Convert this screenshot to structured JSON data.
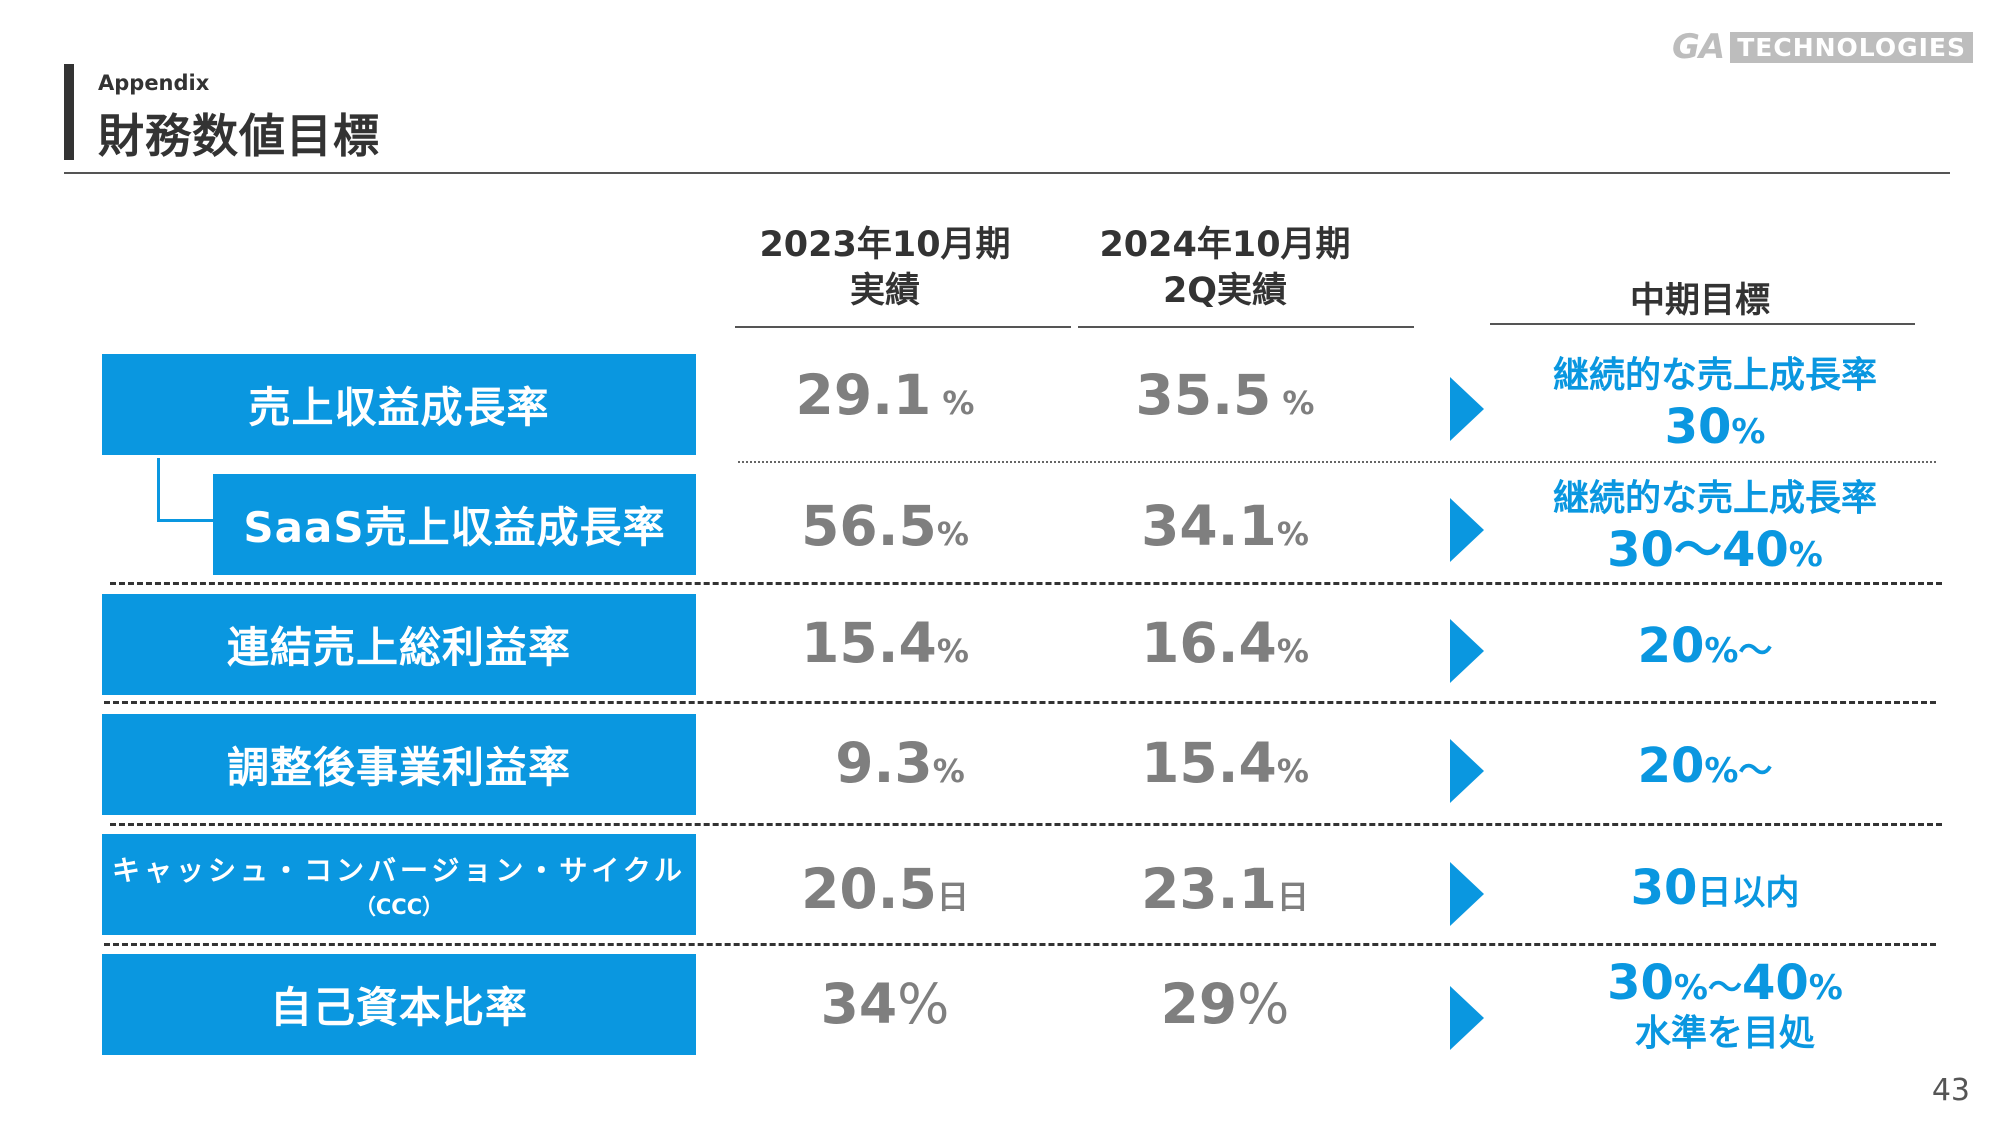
{
  "header": {
    "subtitle": "Appendix",
    "title": "財務数値目標",
    "logo_ga": "GA",
    "logo_tech": "TECHNOLOGIES"
  },
  "columns": {
    "col1_line1": "2023年10月期",
    "col1_line2": "実績",
    "col2_line1": "2024年10月期",
    "col2_line2": "2Q実績",
    "col3": "中期目標"
  },
  "rows": [
    {
      "label": "売上収益成長率",
      "v1": "29.1",
      "v1_unit": " %",
      "v2": "35.5",
      "v2_unit": " %",
      "target_line1": "継続的な売上成長率",
      "target_num": "30",
      "target_unit": "%"
    },
    {
      "label": "SaaS売上収益成長率",
      "v1": "56.5",
      "v1_unit": "%",
      "v2": "34.1",
      "v2_unit": "%",
      "target_line1": "継続的な売上成長率",
      "target_num": "30～40",
      "target_unit": "%"
    },
    {
      "label": "連結売上総利益率",
      "v1": "15.4",
      "v1_unit": "%",
      "v2": "16.4",
      "v2_unit": "%",
      "target_num": "20",
      "target_unit": "%～"
    },
    {
      "label": "調整後事業利益率",
      "v1": "9.3",
      "v1_unit": "%",
      "v2": "15.4",
      "v2_unit": "%",
      "target_num": "20",
      "target_unit": "%～"
    },
    {
      "label": "キャッシュ・コンバージョン・サイクル",
      "label_sub": "（CCC）",
      "v1": "20.5",
      "v1_unit": "日",
      "v2": "23.1",
      "v2_unit": "日",
      "target_num": "30",
      "target_unit": "日以内"
    },
    {
      "label": "自己資本比率",
      "v1": "34",
      "v1_unit": "%",
      "v2": "29",
      "v2_unit": "%",
      "target_num_a": "30",
      "target_unit_a": "%～",
      "target_num_b": "40",
      "target_unit_b": "%",
      "target_line2": "水準を目処"
    }
  ],
  "page_number": "43",
  "colors": {
    "accent": "#0a97e0",
    "value_gray": "#7f7f7f",
    "text": "#333333"
  }
}
